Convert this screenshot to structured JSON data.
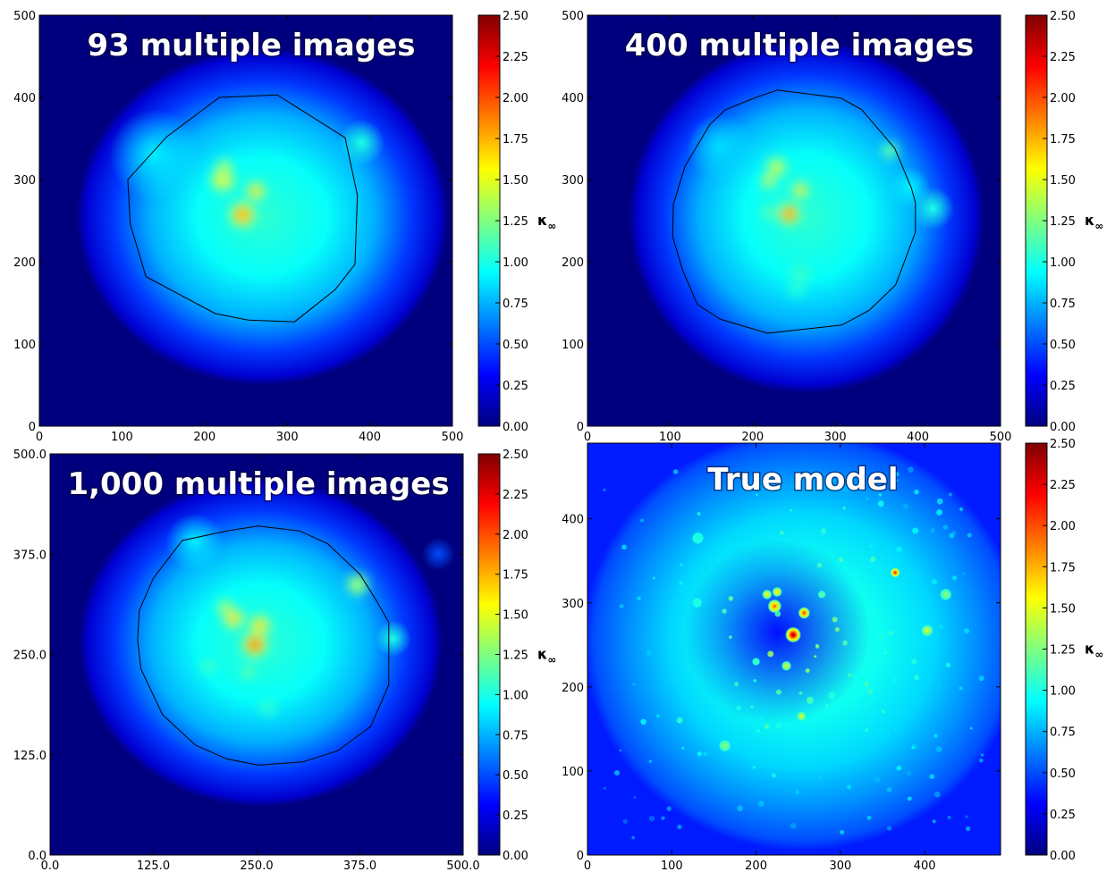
{
  "colormap": [
    "#00007f",
    "#0000ff",
    "#007fff",
    "#00ffff",
    "#7fff7f",
    "#ffff00",
    "#ff7f00",
    "#ff0000",
    "#7f0000"
  ],
  "colorbar_label": {
    "main": "κ",
    "sub": "∞"
  },
  "chart_data": [
    {
      "type": "heatmap",
      "title": "93 multiple images",
      "xlabel": "",
      "ylabel": "",
      "xlim": [
        0,
        500
      ],
      "ylim": [
        0,
        500
      ],
      "x_ticks": [
        "0",
        "100",
        "200",
        "300",
        "400",
        "500"
      ],
      "y_ticks": [
        "0",
        "100",
        "200",
        "300",
        "400",
        "500"
      ],
      "x_tick_values": [
        0,
        100,
        200,
        300,
        400,
        500
      ],
      "y_tick_values": [
        0,
        100,
        200,
        300,
        400,
        500
      ],
      "colorbar": {
        "min": 0.0,
        "max": 2.5,
        "ticks": [
          "0.00",
          "0.25",
          "0.50",
          "0.75",
          "1.00",
          "1.25",
          "1.50",
          "1.75",
          "2.00",
          "2.25",
          "2.50"
        ]
      },
      "background": "mask",
      "grainy": false,
      "halo": {
        "cx": 270,
        "cy": 255,
        "rx": 225,
        "ry": 205
      },
      "blobs": [
        {
          "x": 390,
          "y": 345,
          "r": 28,
          "v": 1.0
        },
        {
          "x": 140,
          "y": 330,
          "r": 55,
          "v": 0.9
        }
      ],
      "peaks": [
        {
          "x": 246,
          "y": 257,
          "v": 2.1,
          "r": 11
        },
        {
          "x": 262,
          "y": 286,
          "v": 1.9,
          "r": 8
        },
        {
          "x": 222,
          "y": 300,
          "v": 1.7,
          "r": 11
        },
        {
          "x": 224,
          "y": 315,
          "v": 1.6,
          "r": 7
        }
      ],
      "critical_curve": [
        [
          218,
          400
        ],
        [
          288,
          403
        ],
        [
          370,
          351
        ],
        [
          385,
          281
        ],
        [
          382,
          197
        ],
        [
          358,
          166
        ],
        [
          309,
          127
        ],
        [
          253,
          129
        ],
        [
          213,
          137
        ],
        [
          129,
          182
        ],
        [
          110,
          246
        ],
        [
          107,
          300
        ],
        [
          154,
          352
        ],
        [
          218,
          400
        ]
      ]
    },
    {
      "type": "heatmap",
      "title": "400 multiple images",
      "xlabel": "",
      "ylabel": "",
      "xlim": [
        0,
        500
      ],
      "ylim": [
        0,
        500
      ],
      "x_ticks": [
        "0",
        "100",
        "200",
        "300",
        "400",
        "500"
      ],
      "y_ticks": [
        "0",
        "100",
        "200",
        "300",
        "400",
        "500"
      ],
      "x_tick_values": [
        0,
        100,
        200,
        300,
        400,
        500
      ],
      "y_tick_values": [
        0,
        100,
        200,
        300,
        400,
        500
      ],
      "colorbar": {
        "min": 0.0,
        "max": 2.5,
        "ticks": [
          "0.00",
          "0.25",
          "0.50",
          "0.75",
          "1.00",
          "1.25",
          "1.50",
          "1.75",
          "2.00",
          "2.25",
          "2.50"
        ]
      },
      "background": "mask",
      "grainy": false,
      "halo": {
        "cx": 265,
        "cy": 255,
        "rx": 215,
        "ry": 215
      },
      "blobs": [
        {
          "x": 418,
          "y": 265,
          "r": 26,
          "v": 1.0
        },
        {
          "x": 390,
          "y": 290,
          "r": 25,
          "v": 0.9
        },
        {
          "x": 160,
          "y": 340,
          "r": 40,
          "v": 0.85
        }
      ],
      "peaks": [
        {
          "x": 244,
          "y": 258,
          "v": 2.3,
          "r": 9
        },
        {
          "x": 258,
          "y": 287,
          "v": 1.9,
          "r": 7
        },
        {
          "x": 229,
          "y": 315,
          "v": 1.6,
          "r": 9
        },
        {
          "x": 219,
          "y": 298,
          "v": 1.8,
          "r": 6
        },
        {
          "x": 366,
          "y": 335,
          "v": 1.3,
          "r": 7
        },
        {
          "x": 220,
          "y": 260,
          "v": 1.3,
          "r": 6
        },
        {
          "x": 258,
          "y": 186,
          "v": 1.1,
          "r": 9
        },
        {
          "x": 253,
          "y": 167,
          "v": 1.05,
          "r": 7
        }
      ],
      "critical_curve": [
        [
          230,
          409
        ],
        [
          307,
          399
        ],
        [
          332,
          385
        ],
        [
          372,
          338
        ],
        [
          392,
          290
        ],
        [
          397,
          272
        ],
        [
          397,
          236
        ],
        [
          373,
          172
        ],
        [
          341,
          141
        ],
        [
          308,
          123
        ],
        [
          218,
          113
        ],
        [
          161,
          130
        ],
        [
          133,
          148
        ],
        [
          115,
          190
        ],
        [
          103,
          231
        ],
        [
          104,
          270
        ],
        [
          118,
          316
        ],
        [
          148,
          367
        ],
        [
          167,
          385
        ],
        [
          204,
          400
        ],
        [
          230,
          409
        ]
      ]
    },
    {
      "type": "heatmap",
      "title": "1,000 multiple images",
      "xlabel": "",
      "ylabel": "",
      "xlim": [
        0,
        500
      ],
      "ylim": [
        0,
        500
      ],
      "x_ticks": [
        "0.0",
        "125.0",
        "250.0",
        "375.0",
        "500.0"
      ],
      "y_ticks": [
        "0.0",
        "125.0",
        "250.0",
        "375.0",
        "500.0"
      ],
      "x_tick_values": [
        0,
        125,
        250,
        375,
        500
      ],
      "y_tick_values": [
        0,
        125,
        250,
        375,
        500
      ],
      "colorbar": {
        "min": 0.0,
        "max": 2.5,
        "ticks": [
          "0.00",
          "0.25",
          "0.50",
          "0.75",
          "1.00",
          "1.25",
          "1.50",
          "1.75",
          "2.00",
          "2.25",
          "2.50"
        ]
      },
      "background": "mask",
      "grainy": false,
      "halo": {
        "cx": 255,
        "cy": 265,
        "rx": 220,
        "ry": 205
      },
      "blobs": [
        {
          "x": 415,
          "y": 270,
          "r": 22,
          "v": 1.0
        },
        {
          "x": 470,
          "y": 375,
          "r": 20,
          "v": 0.5
        },
        {
          "x": 175,
          "y": 390,
          "r": 35,
          "v": 0.9
        }
      ],
      "peaks": [
        {
          "x": 248,
          "y": 262,
          "v": 2.4,
          "r": 10
        },
        {
          "x": 254,
          "y": 286,
          "v": 1.9,
          "r": 9
        },
        {
          "x": 222,
          "y": 295,
          "v": 1.9,
          "r": 9
        },
        {
          "x": 212,
          "y": 308,
          "v": 1.6,
          "r": 7
        },
        {
          "x": 372,
          "y": 337,
          "v": 1.5,
          "r": 9
        },
        {
          "x": 240,
          "y": 228,
          "v": 1.3,
          "r": 6
        },
        {
          "x": 192,
          "y": 235,
          "v": 1.2,
          "r": 6
        },
        {
          "x": 264,
          "y": 184,
          "v": 1.1,
          "r": 7
        }
      ],
      "critical_curve": [
        [
          252,
          410
        ],
        [
          302,
          404
        ],
        [
          336,
          388
        ],
        [
          375,
          350
        ],
        [
          395,
          317
        ],
        [
          410,
          290
        ],
        [
          410,
          212
        ],
        [
          388,
          160
        ],
        [
          348,
          130
        ],
        [
          306,
          116
        ],
        [
          252,
          112
        ],
        [
          213,
          120
        ],
        [
          176,
          137
        ],
        [
          136,
          175
        ],
        [
          110,
          232
        ],
        [
          106,
          268
        ],
        [
          108,
          305
        ],
        [
          125,
          345
        ],
        [
          160,
          392
        ],
        [
          214,
          404
        ],
        [
          252,
          410
        ]
      ]
    },
    {
      "type": "heatmap",
      "title": "True model",
      "xlabel": "",
      "ylabel": "",
      "xlim": [
        0,
        490
      ],
      "ylim": [
        0,
        490
      ],
      "x_ticks": [
        "0",
        "100",
        "200",
        "300",
        "400"
      ],
      "y_ticks": [
        "0",
        "100",
        "200",
        "300",
        "400"
      ],
      "x_tick_values": [
        0,
        100,
        200,
        300,
        400
      ],
      "y_tick_values": [
        0,
        100,
        200,
        300,
        400
      ],
      "colorbar": {
        "min": 0.0,
        "max": 2.5,
        "ticks": [
          "0.00",
          "0.25",
          "0.50",
          "0.75",
          "1.00",
          "1.25",
          "1.50",
          "1.75",
          "2.00",
          "2.25",
          "2.50"
        ]
      },
      "background": "field",
      "grainy": true,
      "halo": {
        "cx": 255,
        "cy": 255,
        "rx": 260,
        "ry": 250
      },
      "blobs": [
        {
          "x": 225,
          "y": 265,
          "r": 110,
          "v": 0.35
        }
      ],
      "peaks": [
        {
          "x": 244,
          "y": 262,
          "v": 2.5,
          "r": 8
        },
        {
          "x": 257,
          "y": 288,
          "v": 2.1,
          "r": 6
        },
        {
          "x": 222,
          "y": 296,
          "v": 2.0,
          "r": 7
        },
        {
          "x": 225,
          "y": 313,
          "v": 1.7,
          "r": 5
        },
        {
          "x": 213,
          "y": 310,
          "v": 1.6,
          "r": 5
        },
        {
          "x": 365,
          "y": 336,
          "v": 2.2,
          "r": 5
        },
        {
          "x": 403,
          "y": 267,
          "v": 1.5,
          "r": 6
        },
        {
          "x": 425,
          "y": 310,
          "v": 1.3,
          "r": 6
        },
        {
          "x": 236,
          "y": 225,
          "v": 1.5,
          "r": 5
        },
        {
          "x": 254,
          "y": 165,
          "v": 1.5,
          "r": 5
        },
        {
          "x": 264,
          "y": 184,
          "v": 1.2,
          "r": 4
        },
        {
          "x": 163,
          "y": 130,
          "v": 1.3,
          "r": 6
        },
        {
          "x": 131,
          "y": 377,
          "v": 1.0,
          "r": 6
        },
        {
          "x": 130,
          "y": 300,
          "v": 1.0,
          "r": 5
        },
        {
          "x": 290,
          "y": 190,
          "v": 1.0,
          "r": 4
        },
        {
          "x": 200,
          "y": 230,
          "v": 1.1,
          "r": 4
        },
        {
          "x": 278,
          "y": 310,
          "v": 1.2,
          "r": 4
        }
      ],
      "critical_curve": []
    }
  ]
}
